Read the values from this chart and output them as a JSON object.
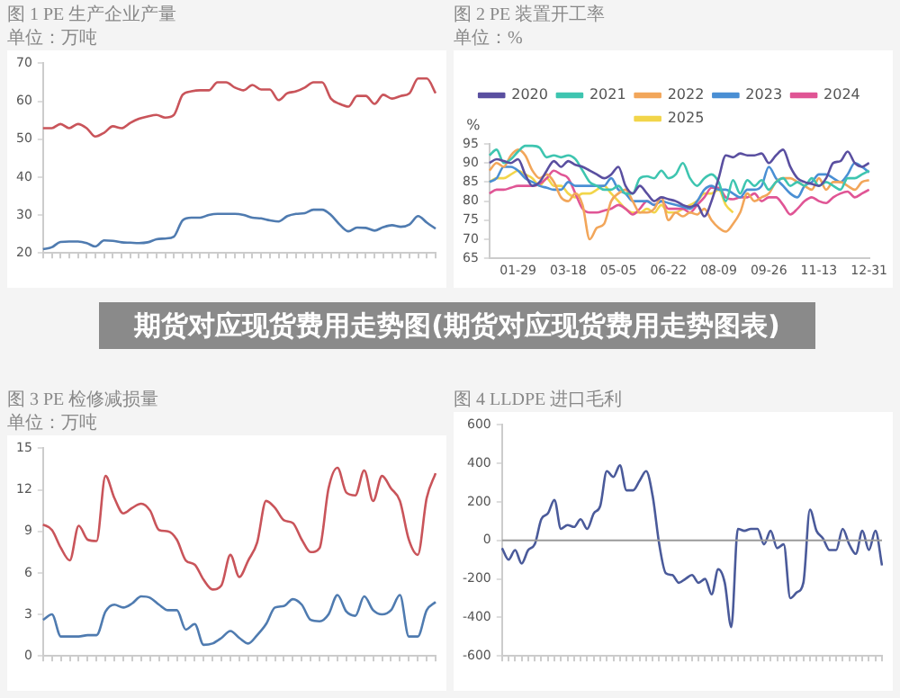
{
  "chart_data": [
    {
      "type": "line",
      "title": "图 1 PE 生产企业产量",
      "subtitle": "单位：万吨",
      "categories": [
        null,
        null,
        null,
        null,
        null,
        null,
        null,
        null,
        null,
        null,
        null,
        null,
        null,
        null,
        null,
        null,
        null,
        null,
        null,
        null,
        null,
        null,
        null,
        null,
        null,
        null,
        null,
        null,
        null,
        null,
        null,
        null,
        null,
        null,
        null,
        null,
        null,
        null,
        null,
        null,
        null,
        null,
        null,
        null,
        null,
        null
      ],
      "series": [
        {
          "color": "#c9545a",
          "values": [
            52.9,
            52.9,
            54,
            52.9,
            54,
            52.9,
            50.7,
            51.7,
            53.4,
            52.9,
            54.3,
            55.4,
            56,
            56.4,
            55.7,
            56.4,
            61.7,
            62.6,
            62.9,
            62.9,
            65,
            65,
            63.6,
            62.9,
            64.3,
            63.1,
            63.1,
            60.3,
            62.1,
            62.6,
            63.6,
            65,
            65,
            60.7,
            59.3,
            58.6,
            61.4,
            61.4,
            59.3,
            61.7,
            60.7,
            61.4,
            62.1,
            66,
            66,
            62.1
          ]
        },
        {
          "color": "#4f7bb0",
          "values": [
            21,
            21.5,
            22.9,
            23,
            23,
            22.6,
            21.7,
            23.3,
            23.2,
            22.8,
            22.7,
            22.6,
            22.8,
            23.6,
            23.8,
            24.3,
            28.6,
            29.3,
            29.3,
            30,
            30.3,
            30.3,
            30.3,
            30,
            29.3,
            29.1,
            28.6,
            28.3,
            29.7,
            30.3,
            30.5,
            31.4,
            31.4,
            30,
            27.5,
            25.7,
            26.7,
            26.6,
            25.9,
            26.8,
            27.3,
            26.9,
            27.5,
            29.7,
            28,
            26.4
          ]
        }
      ],
      "ylim": [
        20,
        70
      ],
      "yticks": [
        20,
        30,
        40,
        50,
        60,
        70
      ]
    },
    {
      "type": "line",
      "title": "图 2 PE 装置开工率",
      "subtitle": "单位：%",
      "ylabel": "%",
      "categories": [
        null,
        null,
        null,
        null,
        "01-29",
        null,
        null,
        null,
        null,
        null,
        null,
        "03-18",
        null,
        null,
        null,
        null,
        null,
        null,
        "05-05",
        null,
        null,
        null,
        null,
        null,
        null,
        "06-22",
        null,
        null,
        null,
        null,
        null,
        null,
        "08-09",
        null,
        null,
        null,
        null,
        null,
        null,
        "09-26",
        null,
        null,
        null,
        null,
        null,
        null,
        "11-13",
        null,
        null,
        null,
        null,
        null,
        null,
        "12-31"
      ],
      "series": [
        {
          "name": "2020",
          "color": "#5a4fa0",
          "values": [
            90,
            91,
            90.5,
            90,
            91,
            87,
            84,
            85,
            88,
            90.5,
            89,
            90.5,
            89.5,
            89,
            88,
            87,
            86,
            87,
            89,
            84,
            82,
            84,
            82,
            80,
            81,
            80.5,
            80,
            79,
            78.5,
            79,
            76,
            80,
            86,
            92,
            91.5,
            92.5,
            92,
            92,
            92.5,
            90,
            92,
            93.5,
            89,
            86,
            85,
            84.5,
            84,
            86,
            90,
            90.5,
            93,
            90,
            89,
            90
          ]
        },
        {
          "name": "2021",
          "color": "#3ec5b0",
          "values": [
            92,
            93.5,
            90,
            91,
            93,
            94.5,
            94.5,
            94,
            91.5,
            92,
            91.5,
            92,
            91,
            88,
            85,
            84,
            83,
            83,
            84,
            82,
            82,
            86,
            86.5,
            86,
            88,
            86,
            87,
            90,
            86,
            84,
            86,
            87,
            85,
            80,
            85.5,
            82,
            85.5,
            84,
            85.5,
            83,
            85,
            86,
            84,
            85,
            84,
            86,
            84,
            85,
            84,
            83,
            86,
            86,
            87,
            88
          ]
        },
        {
          "name": "2022",
          "color": "#f2a65a",
          "values": [
            88,
            90,
            89,
            92,
            93.5,
            92,
            88,
            86,
            87,
            85,
            81,
            80,
            82,
            79,
            70,
            73,
            74,
            80,
            82,
            83,
            80,
            77,
            77,
            78,
            81,
            75,
            77,
            76,
            77,
            76.5,
            78,
            75,
            73,
            72,
            74,
            77,
            82,
            80,
            81,
            82,
            85,
            86,
            86,
            85,
            84,
            83,
            86,
            83,
            85,
            85,
            84,
            83,
            85,
            85.5
          ]
        },
        {
          "name": "2023",
          "color": "#4a8fd4",
          "values": [
            85,
            86,
            89,
            89,
            88,
            86,
            85,
            84,
            83.5,
            83,
            83,
            85,
            84,
            84,
            84,
            84,
            84,
            86,
            83,
            82,
            80,
            80,
            80,
            79,
            80,
            79.5,
            79,
            78.5,
            78,
            80,
            83,
            84,
            83,
            83,
            82,
            81,
            83,
            83,
            84,
            89,
            86,
            84,
            82,
            81,
            84,
            85,
            87,
            87,
            86,
            85,
            87,
            90,
            89,
            87.5
          ]
        },
        {
          "name": "2024",
          "color": "#e05595",
          "values": [
            82,
            83,
            83,
            83.5,
            84,
            84,
            84,
            84.5,
            86,
            88,
            87,
            86,
            82,
            78,
            77,
            77,
            77.5,
            78,
            79,
            78,
            76.5,
            78,
            80,
            79,
            80,
            78,
            78,
            78,
            77,
            79,
            81,
            83.5,
            83.5,
            81,
            80.5,
            81,
            81,
            82,
            80,
            81,
            81,
            79,
            76.5,
            78,
            80,
            81,
            80,
            79.5,
            81,
            82,
            82.5,
            81,
            82,
            83
          ]
        },
        {
          "name": "2025",
          "color": "#f2d54a",
          "values": [
            85,
            86,
            86,
            87,
            88,
            87,
            86,
            84,
            86,
            84,
            84,
            82,
            81,
            82,
            82,
            83,
            84,
            82,
            80,
            78,
            77,
            77,
            78,
            77,
            79,
            77,
            77,
            78,
            79,
            80,
            82,
            82,
            83,
            79,
            77,
            null,
            null,
            null,
            null,
            null,
            null,
            null,
            null,
            null,
            null,
            null,
            null,
            null,
            null,
            null,
            null,
            null,
            null,
            null
          ]
        }
      ],
      "ylim": [
        65,
        95
      ],
      "yticks": [
        65,
        70,
        75,
        80,
        85,
        90,
        95
      ],
      "legend": "top"
    },
    {
      "type": "other",
      "title": "期货对应现货费用走势图(期货对应现货费用走势图表)"
    },
    {
      "type": "line",
      "title": "图 3 PE 检修减损量",
      "subtitle": "单位：万吨",
      "categories": [
        null,
        null,
        null,
        null,
        null,
        null,
        null,
        null,
        null,
        null,
        null,
        null,
        null,
        null,
        null,
        null,
        null,
        null,
        null,
        null,
        null,
        null,
        null,
        null,
        null,
        null,
        null,
        null,
        null,
        null,
        null,
        null,
        null,
        null,
        null,
        null,
        null,
        null,
        null,
        null,
        null,
        null,
        null,
        null,
        null
      ],
      "series": [
        {
          "color": "#c9545a",
          "values": [
            9.5,
            9.1,
            7.8,
            6.9,
            9.4,
            8.4,
            8.3,
            13,
            11.4,
            10.3,
            10.7,
            11,
            10.5,
            9.1,
            9,
            8.4,
            6.9,
            6.6,
            5.5,
            4.8,
            5.1,
            7.3,
            5.7,
            6.9,
            8.2,
            11.2,
            10.7,
            9.8,
            9.6,
            8.4,
            7.5,
            7.8,
            12.1,
            13.6,
            11.8,
            11.6,
            13.4,
            11.2,
            13,
            12.1,
            11.2,
            8.4,
            7.3,
            11.4,
            13.2
          ]
        },
        {
          "color": "#4f7bb0",
          "values": [
            2.6,
            3,
            1.4,
            1.4,
            1.4,
            1.5,
            1.5,
            3.2,
            3.7,
            3.5,
            3.8,
            4.3,
            4.2,
            3.7,
            3.3,
            3.3,
            1.9,
            2.3,
            0.8,
            0.9,
            1.3,
            1.8,
            1.3,
            0.9,
            1.5,
            2.3,
            3.5,
            3.6,
            4.1,
            3.7,
            2.6,
            2.5,
            3,
            4.4,
            3.2,
            2.9,
            4.3,
            3.3,
            3,
            3.3,
            4.4,
            1.4,
            1.4,
            3.3,
            3.9
          ]
        }
      ],
      "ylim": [
        0,
        15
      ],
      "yticks": [
        0,
        3,
        6,
        9,
        12,
        15
      ]
    },
    {
      "type": "line",
      "title": "图 4 LLDPE 进口毛利",
      "categories": [
        null,
        null,
        null,
        null,
        null,
        null,
        null,
        null,
        null,
        null,
        null,
        null,
        null,
        null,
        null,
        null,
        null,
        null,
        null,
        null,
        null,
        null,
        null,
        null,
        null,
        null,
        null,
        null,
        null,
        null,
        null,
        null,
        null,
        null,
        null,
        null,
        null,
        null,
        null,
        null,
        null,
        null,
        null,
        null,
        null,
        null,
        null,
        null,
        null,
        null,
        null,
        null,
        null,
        null,
        null,
        null,
        null,
        null,
        null
      ],
      "series": [
        {
          "color": "#4a5a9a",
          "values": [
            -40,
            -100,
            -50,
            -120,
            -50,
            -20,
            110,
            140,
            210,
            60,
            80,
            70,
            110,
            60,
            140,
            180,
            360,
            330,
            390,
            260,
            260,
            310,
            360,
            230,
            -20,
            -170,
            -180,
            -220,
            -200,
            -180,
            -220,
            -200,
            -280,
            -150,
            -220,
            -450,
            60,
            50,
            60,
            60,
            -20,
            50,
            -40,
            -20,
            -300,
            -270,
            -220,
            160,
            50,
            10,
            -50,
            -50,
            60,
            -20,
            -70,
            50,
            -50,
            50,
            -130
          ]
        }
      ],
      "ylim": [
        -600,
        600
      ],
      "yticks": [
        -600,
        -400,
        -200,
        0,
        200,
        400,
        600
      ],
      "ref_lines": [
        {
          "axis": "y",
          "value": 0,
          "color": "#9a9a9a"
        }
      ]
    }
  ]
}
